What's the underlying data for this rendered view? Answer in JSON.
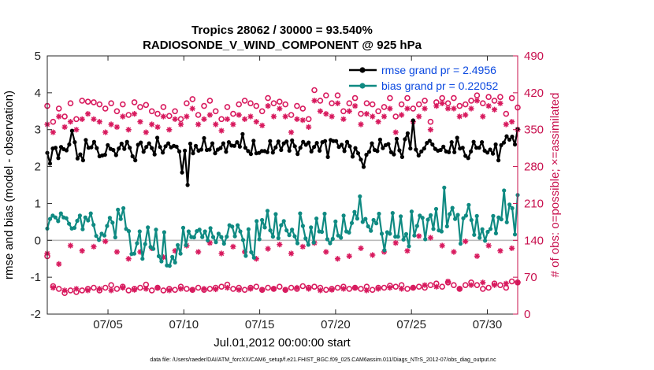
{
  "chart_data": {
    "type": "line",
    "title_line1": "Tropics 28062 / 30000 = 93.540%",
    "title_line2": "RADIOSONDE_V_WIND_COMPONENT @ 925 hPa",
    "xlabel": "Jul.01,2012 00:00:00 start",
    "ylabel_left": "rmse and bias (model - observation)",
    "ylabel_right": "# of obs: o=possible; ×=assimilated",
    "footnote": "data file: /Users/raeder/DAI/ATM_forcXX/CAM6_setup/f.e21.FHIST_BGC.f09_025.CAM6assim.011/Diags_NTrS_2012-07/obs_diag_output.nc",
    "x_range": [
      1.0,
      32.0
    ],
    "x_ticks": [
      {
        "value": 5,
        "label": "07/05"
      },
      {
        "value": 10,
        "label": "07/10"
      },
      {
        "value": 15,
        "label": "07/15"
      },
      {
        "value": 20,
        "label": "07/20"
      },
      {
        "value": 25,
        "label": "07/25"
      },
      {
        "value": 30,
        "label": "07/30"
      }
    ],
    "ylim_left": [
      -2,
      5
    ],
    "yticks_left": [
      "-2",
      "-1",
      "0",
      "1",
      "2",
      "3",
      "4",
      "5"
    ],
    "ylim_right": [
      0,
      490
    ],
    "yticks_right": [
      "0",
      "70",
      "140",
      "210",
      "280",
      "350",
      "420",
      "490"
    ],
    "zero_line": 0,
    "colors": {
      "rmse": "#000000",
      "bias": "#0f8a82",
      "obs": "#d81a5e",
      "zero": "#bbbbbb",
      "legend_text": "#0a48e0",
      "right_axis": "#c8104e"
    },
    "series": [
      {
        "name": "rmse grand pr = 2.4956",
        "axis": "left",
        "marker": "filled-circle",
        "values": [
          2.37,
          2.08,
          2.49,
          2.51,
          2.23,
          2.53,
          2.47,
          2.44,
          2.6,
          2.97,
          2.66,
          2.22,
          2.33,
          2.17,
          2.72,
          2.51,
          2.52,
          2.67,
          2.5,
          2.28,
          2.3,
          2.32,
          2.58,
          2.48,
          2.45,
          2.31,
          2.49,
          2.62,
          2.48,
          2.67,
          2.51,
          2.28,
          2.17,
          2.59,
          2.65,
          2.4,
          2.53,
          2.63,
          2.5,
          2.33,
          2.78,
          2.53,
          2.38,
          2.55,
          2.63,
          2.52,
          2.56,
          2.54,
          2.41,
          1.84,
          2.43,
          1.5,
          2.62,
          2.36,
          2.56,
          2.43,
          2.46,
          2.77,
          2.45,
          2.46,
          2.63,
          2.36,
          2.46,
          2.5,
          2.63,
          2.4,
          2.66,
          2.57,
          2.56,
          2.66,
          2.54,
          2.88,
          2.51,
          2.42,
          2.34,
          2.7,
          2.36,
          2.37,
          2.42,
          2.42,
          2.39,
          2.69,
          2.38,
          2.52,
          2.68,
          2.45,
          2.63,
          2.68,
          2.43,
          2.71,
          2.55,
          2.34,
          2.51,
          2.67,
          2.59,
          2.65,
          2.41,
          2.53,
          2.64,
          2.43,
          2.66,
          2.69,
          2.26,
          2.72,
          2.69,
          2.69,
          2.53,
          2.59,
          2.42,
          2.67,
          2.55,
          2.27,
          2.5,
          2.36,
          2.19,
          1.99,
          2.32,
          2.4,
          2.63,
          2.45,
          2.42,
          2.73,
          2.5,
          2.58,
          2.61,
          2.39,
          2.33,
          2.75,
          2.44,
          2.26,
          2.74,
          2.9,
          2.49,
          3.25,
          2.46,
          2.3,
          2.41,
          2.49,
          2.64,
          2.7,
          2.6,
          2.48,
          2.43,
          2.45,
          2.54,
          2.41,
          2.39,
          2.66,
          2.39,
          2.78,
          2.49,
          2.51,
          2.29,
          2.23,
          2.41,
          2.67,
          2.51,
          2.51,
          2.66,
          2.43,
          2.38,
          2.46,
          2.35,
          2.6,
          2.17,
          2.58,
          2.65,
          2.82,
          2.73,
          2.81,
          2.6,
          3.02
        ]
      },
      {
        "name": "bias grand pr = 0.22052",
        "axis": "left",
        "marker": "filled-circle",
        "values": [
          0.32,
          0.58,
          0.67,
          0.62,
          0.52,
          0.73,
          0.62,
          0.6,
          0.45,
          0.32,
          0.34,
          0.53,
          0.67,
          0.3,
          0.62,
          0.54,
          0.73,
          0.42,
          0.12,
          0.01,
          0.18,
          0.13,
          0.39,
          0.61,
          0.48,
          0.08,
          0.83,
          0.58,
          0.87,
          0.31,
          0.25,
          -0.37,
          -0.36,
          -0.08,
          0.24,
          -0.5,
          -0.1,
          0.35,
          -0.18,
          -0.23,
          0.29,
          -0.43,
          -0.57,
          0.22,
          -0.68,
          -0.69,
          -0.45,
          -0.6,
          -0.13,
          -0.36,
          0.34,
          -0.13,
          0.24,
          0.09,
          0.08,
          0.25,
          0.29,
          0.09,
          0.24,
          0.0,
          0.33,
          0.09,
          -0.05,
          0.18,
          0.09,
          -0.09,
          0.1,
          0.41,
          0.37,
          0.11,
          0.41,
          0.24,
          0.01,
          -0.42,
          0.3,
          -0.32,
          -0.47,
          0.52,
          0.03,
          0.55,
          0.35,
          0.8,
          0.27,
          0.1,
          0.71,
          0.06,
          0.41,
          0.52,
          0.27,
          0.14,
          0.29,
          0.11,
          -0.08,
          0.73,
          0.39,
          0.05,
          -0.12,
          0.35,
          -0.06,
          0.59,
          0.24,
          0.23,
          0.72,
          0.03,
          -0.08,
          0.04,
          0.51,
          0.13,
          0.07,
          0.67,
          0.24,
          0.21,
          0.47,
          0.77,
          0.59,
          1.19,
          0.5,
          0.58,
          0.38,
          0.26,
          0.55,
          0.46,
          0.72,
          0.18,
          -0.27,
          0.22,
          0.18,
          0.74,
          0.1,
          0.1,
          0.65,
          0.02,
          0.17,
          -0.16,
          0.78,
          0.13,
          0.39,
          0.67,
          0.61,
          0.03,
          0.56,
          0.68,
          0.31,
          0.85,
          0.27,
          0.24,
          1.43,
          0.38,
          0.71,
          0.88,
          0.58,
          0.69,
          -0.09,
          0.6,
          0.67,
          0.96,
          0.55,
          0.15,
          0.66,
          0.07,
          0.3,
          -0.01,
          0.23,
          0.31,
          0.66,
          0.19,
          0.62,
          0.57,
          1.35,
          0.49,
          0.97,
          0.87,
          0.16,
          1.23
        ]
      },
      {
        "name": "possible (upper)",
        "axis": "right",
        "marker": "circle",
        "values": [
          395,
          365,
          390,
          375,
          400,
          370,
          405,
          403,
          402,
          398,
          390,
          400,
          385,
          398,
          378,
          402,
          393,
          397,
          385,
          380,
          393,
          376,
          385,
          370,
          400,
          408,
          378,
          395,
          405,
          385,
          370,
          393,
          380,
          398,
          405,
          400,
          395,
          385,
          410,
          400,
          403,
          398,
          378,
          395,
          390,
          370,
          425,
          405,
          415,
          400,
          415,
          385,
          400,
          410,
          380,
          400,
          398,
          385,
          393,
          410,
          375,
          398,
          410,
          390,
          398,
          405,
          365,
          402,
          410,
          400,
          410,
          395,
          398,
          405,
          415,
          400,
          412,
          405,
          412,
          380,
          410,
          392
        ]
      },
      {
        "name": "assimilated (upper)",
        "axis": "right",
        "marker": "asterisk",
        "values": [
          360,
          345,
          375,
          355,
          365,
          350,
          370,
          380,
          370,
          365,
          345,
          360,
          355,
          375,
          350,
          380,
          365,
          345,
          360,
          355,
          375,
          350,
          370,
          360,
          375,
          390,
          360,
          370,
          378,
          360,
          348,
          370,
          360,
          378,
          370,
          375,
          365,
          358,
          395,
          375,
          390,
          375,
          345,
          370,
          368,
          355,
          405,
          385,
          380,
          375,
          400,
          370,
          385,
          395,
          360,
          380,
          375,
          365,
          375,
          390,
          345,
          378,
          390,
          365,
          375,
          390,
          350,
          395,
          400,
          390,
          390,
          375,
          378,
          390,
          405,
          375,
          395,
          388,
          400,
          360,
          365,
          350
        ]
      },
      {
        "name": "possible (lower)",
        "axis": "right",
        "marker": "circle",
        "values": [
          110,
          53,
          48,
          40,
          45,
          42,
          45,
          48,
          50,
          45,
          50,
          55,
          48,
          52,
          45,
          48,
          50,
          56,
          45,
          50,
          45,
          48,
          46,
          52,
          48,
          46,
          50,
          46,
          48,
          50,
          52,
          56,
          48,
          50,
          46,
          50,
          52,
          46,
          50,
          48,
          52,
          46,
          50,
          48,
          53,
          50,
          52,
          50,
          46,
          48,
          50,
          52,
          48,
          50,
          48,
          52,
          46,
          50,
          50,
          54,
          52,
          55,
          48,
          50,
          52,
          50,
          55,
          58,
          52,
          60,
          55,
          48,
          55,
          60,
          55,
          48,
          50,
          58,
          55,
          50,
          62,
          60
        ]
      },
      {
        "name": "assimilated (lower)",
        "axis": "right",
        "marker": "asterisk",
        "values": [
          115,
          50,
          95,
          45,
          130,
          48,
          120,
          45,
          128,
          48,
          138,
          45,
          118,
          50,
          105,
          46,
          118,
          48,
          125,
          50,
          108,
          45,
          120,
          48,
          130,
          46,
          118,
          48,
          135,
          47,
          115,
          50,
          128,
          46,
          118,
          48,
          105,
          46,
          124,
          48,
          132,
          46,
          115,
          50,
          128,
          48,
          135,
          45,
          118,
          46,
          105,
          48,
          110,
          50,
          125,
          45,
          112,
          48,
          118,
          50,
          135,
          48,
          120,
          50,
          148,
          55,
          145,
          52,
          130,
          62,
          118,
          48,
          138,
          55,
          110,
          60,
          130,
          55,
          120,
          58,
          125,
          60
        ]
      }
    ]
  }
}
